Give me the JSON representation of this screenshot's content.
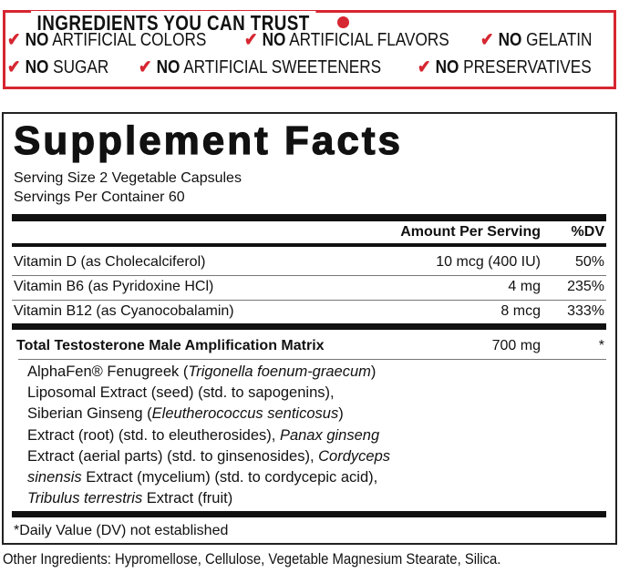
{
  "trust": {
    "title": "INGREDIENTS YOU CAN TRUST",
    "accent": "#d62631",
    "claims": [
      {
        "bold": "NO",
        "text": "ARTIFICIAL COLORS"
      },
      {
        "bold": "NO",
        "text": "ARTIFICIAL FLAVORS"
      },
      {
        "bold": "NO",
        "text": "GELATIN"
      },
      {
        "bold": "NO",
        "text": "SUGAR"
      },
      {
        "bold": "NO",
        "text": "ARTIFICIAL SWEETENERS"
      },
      {
        "bold": "NO",
        "text": "PRESERVATIVES"
      }
    ],
    "check_icon": "checkmark-icon"
  },
  "facts": {
    "title": "Supplement Facts",
    "serving_size": "Serving Size 2 Vegetable Capsules",
    "servings_per_container": "Servings Per Container 60",
    "header": {
      "amount": "Amount Per Serving",
      "dv": "%DV"
    },
    "rows": [
      {
        "name": "Vitamin D (as Cholecalciferol)",
        "amount": "10 mcg (400 IU)",
        "dv": "50%"
      },
      {
        "name": "Vitamin B6 (as Pyridoxine HCl)",
        "amount": "4 mg",
        "dv": "235%"
      },
      {
        "name": "Vitamin B12 (as Cyanocobalamin)",
        "amount": "8 mcg",
        "dv": "333%"
      }
    ],
    "matrix": {
      "name": "Total Testosterone Male Amplification Matrix",
      "amount": "700 mg",
      "dv": "*"
    },
    "ingredients": [
      [
        "AlphaFen® Fenugreek (",
        "Trigonella foenum-graecum",
        ")"
      ],
      [
        "Liposomal Extract (seed) (std. to sapogenins),",
        "",
        ""
      ],
      [
        "Siberian Ginseng (",
        "Eleutherococcus senticosus",
        ")"
      ],
      [
        "Extract (root) (std. to eleutherosides), ",
        "Panax ginseng",
        ""
      ],
      [
        "Extract (aerial parts) (std. to ginsenosides), ",
        "Cordyceps",
        ""
      ],
      [
        "",
        "sinensis",
        " Extract (mycelium) (std. to cordycepic acid),"
      ],
      [
        "",
        "Tribulus terrestris",
        " Extract (fruit)"
      ]
    ],
    "footnote": "*Daily Value (DV) not established"
  },
  "other_ingredients": "Other Ingredients: Hypromellose, Cellulose, Vegetable Magnesium Stearate, Silica."
}
